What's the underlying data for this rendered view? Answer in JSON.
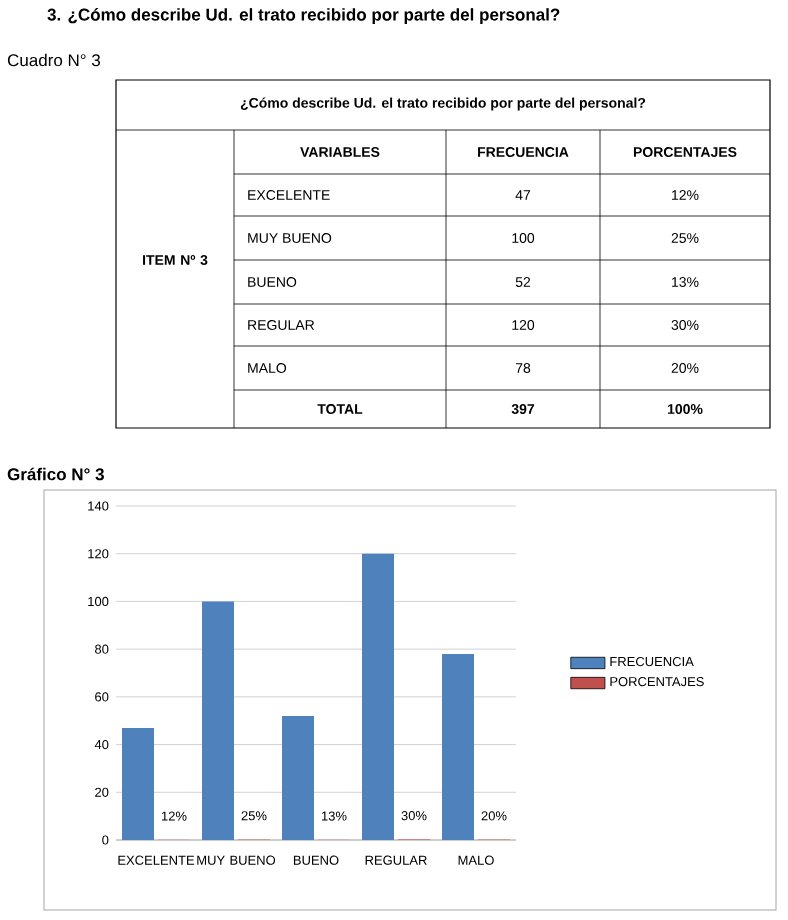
{
  "chart_data": [
    {
      "type": "other",
      "title": "3.  ¿Cómo describe Ud. el trato recibido por parte del personal?",
      "subtitle": "Cuadro N° 3",
      "annotations": [
        "¿Cómo describe Ud. el trato recibido por parte del personal?",
        "VARIABLES",
        "FRECUENCIA",
        "PORCENTAJES",
        "ITEM Nº 3",
        "EXCELENTE",
        "47",
        "12%",
        "MUY BUENO",
        "100",
        "25%",
        "BUENO",
        "52",
        "13%",
        "REGULAR",
        "120",
        "30%",
        "MALO",
        "78",
        "20%",
        "TOTAL",
        "397",
        "100%"
      ]
    },
    {
      "type": "bar",
      "title": "Gráfico N° 3",
      "categories": [
        "EXCELENTE",
        "MUY BUENO",
        "BUENO",
        "REGULAR",
        "MALO"
      ],
      "series": [
        {
          "name": "FRECUENCIA",
          "color": "#4f81bd",
          "values": [
            47,
            100,
            52,
            120,
            78
          ]
        },
        {
          "name": "PORCENTAJES",
          "color": "#c0504d",
          "values": [
            0.12,
            0.25,
            0.13,
            0.3,
            0.2
          ],
          "value_labels": [
            "12%",
            "25%",
            "13%",
            "30%",
            "20%"
          ]
        }
      ],
      "ylim": [
        0,
        140
      ],
      "yticks": [
        0,
        20,
        40,
        60,
        80,
        100,
        120,
        140
      ],
      "grid": "y",
      "legend": "right"
    }
  ]
}
